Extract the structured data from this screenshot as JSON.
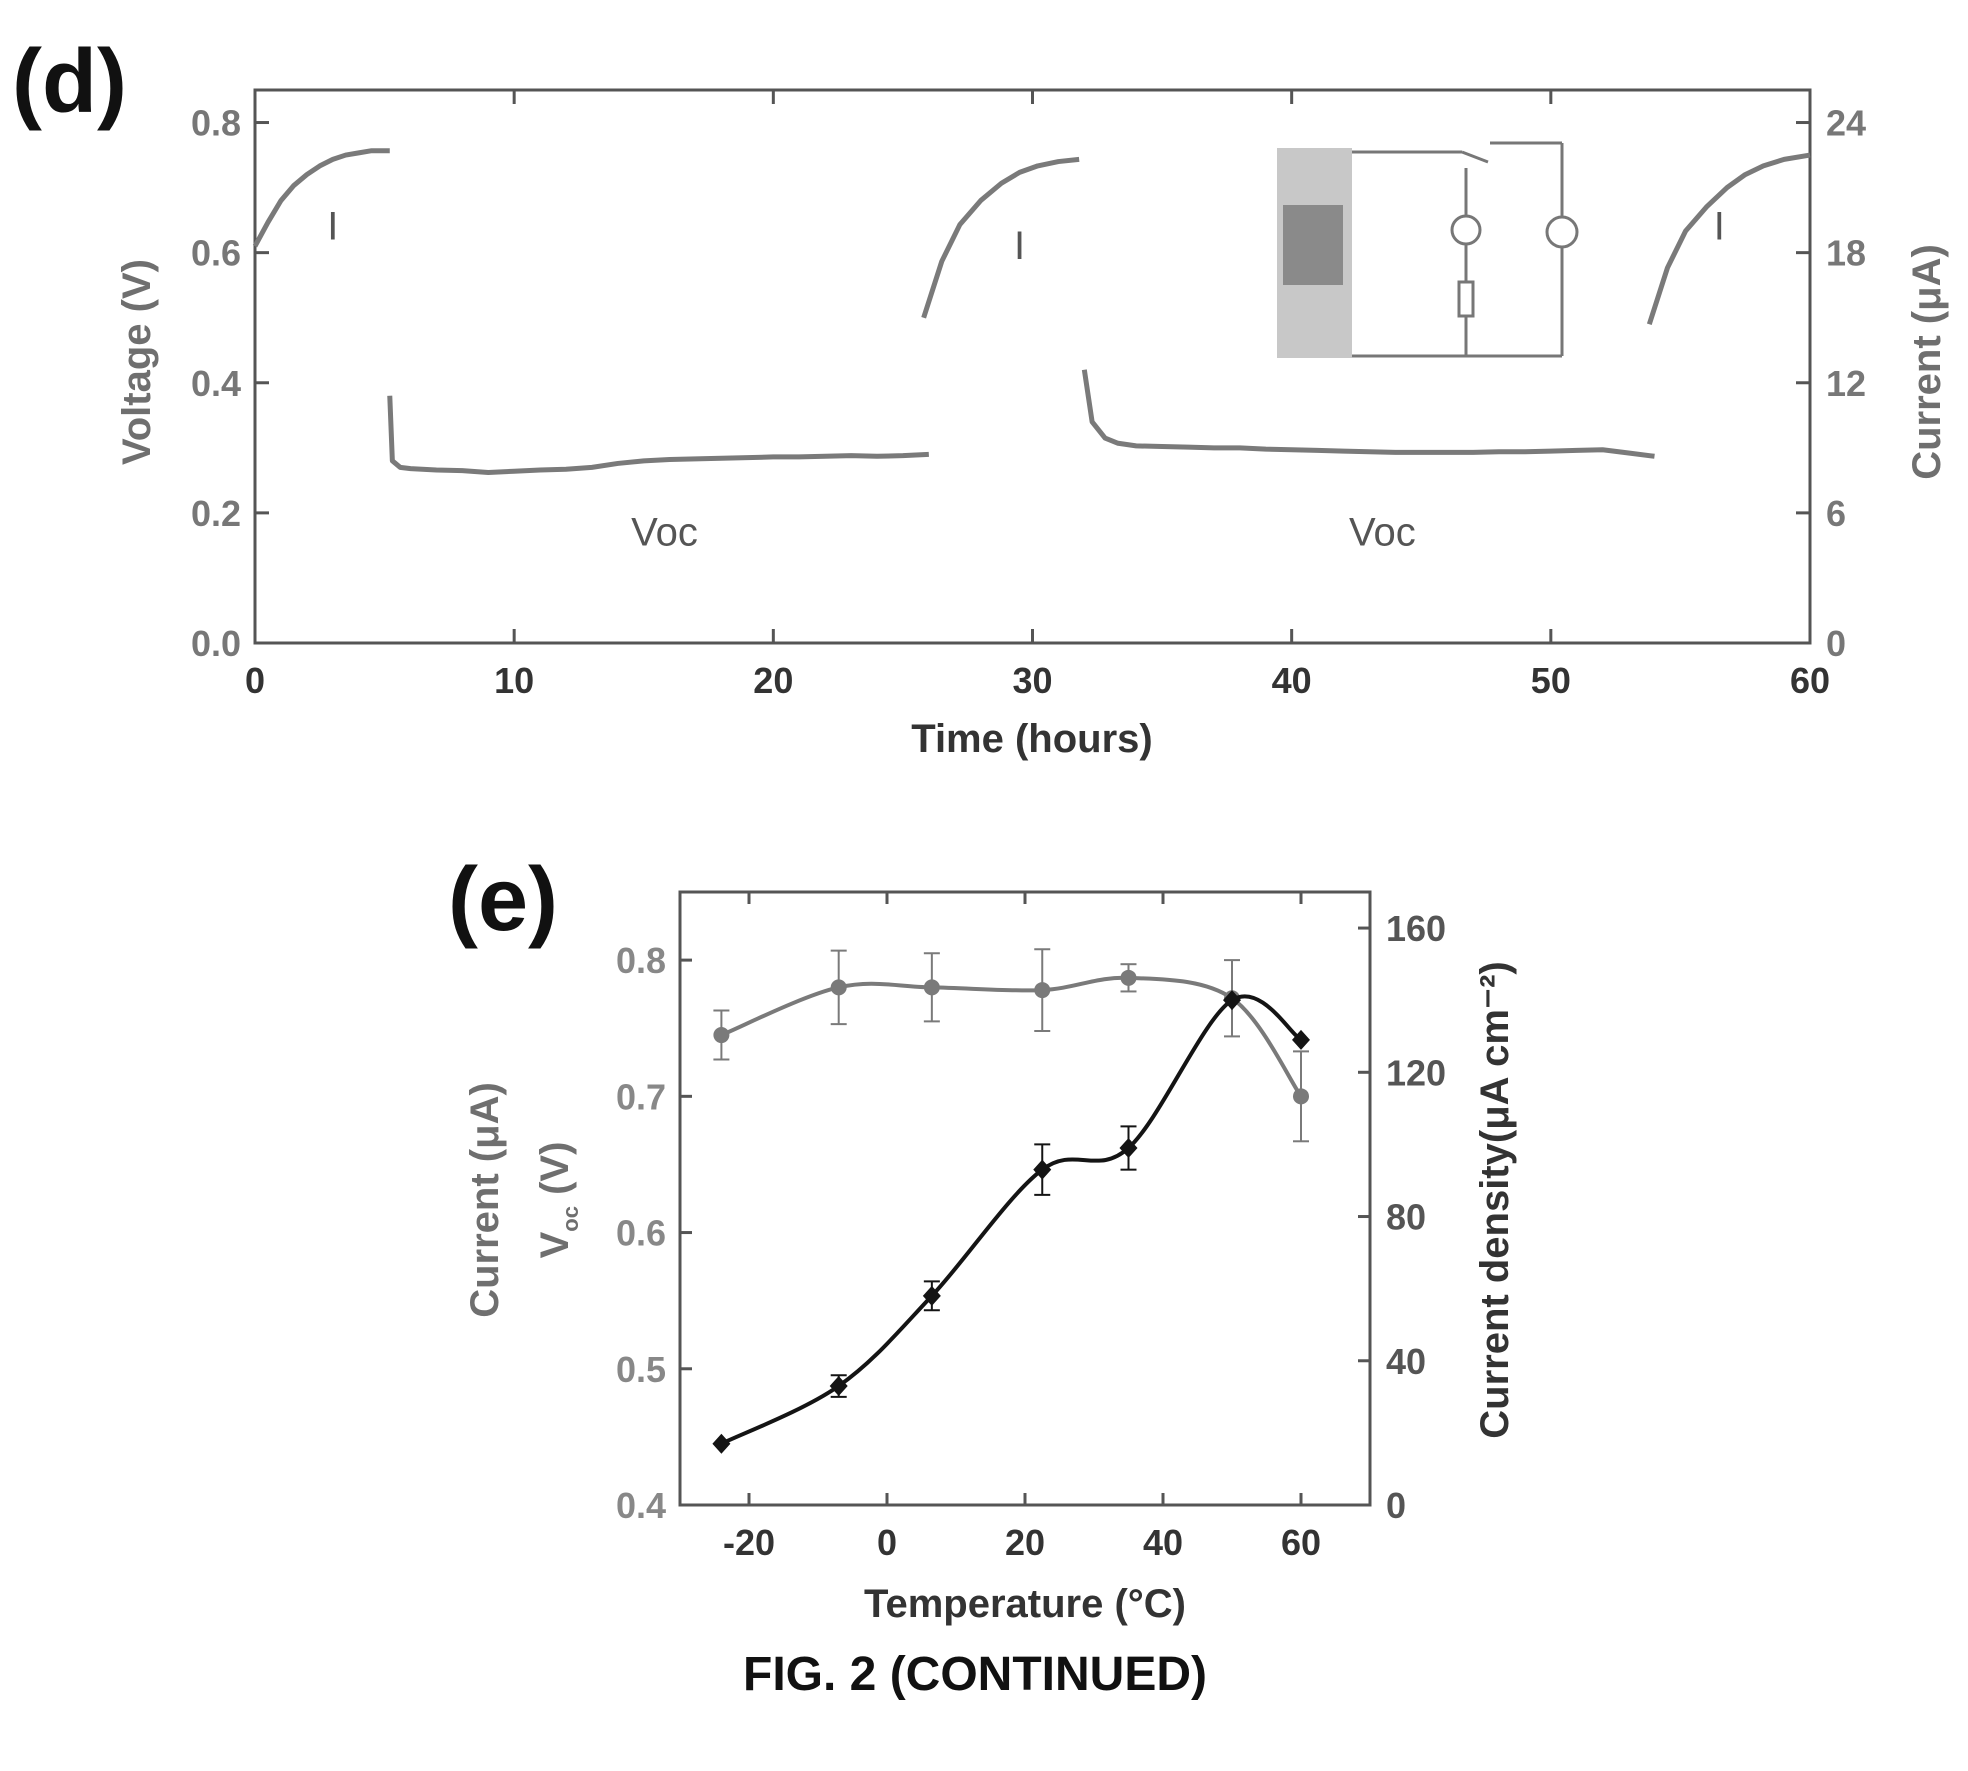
{
  "figure_caption": "FIG. 2 (CONTINUED)",
  "colors": {
    "gray_series": "#7a7a7a",
    "black_series": "#141414",
    "frame": "#555555"
  },
  "chart_data": [
    {
      "panel_label": "(d)",
      "type": "line",
      "title": "",
      "xlabel": "Time (hours)",
      "ylabel": "Voltage (V)",
      "ylabel_right": "Current (μA)",
      "xlim": [
        0,
        60
      ],
      "ylim": [
        0.0,
        0.85
      ],
      "ylim_right": [
        0,
        25.5
      ],
      "x_ticks": [
        "0",
        "10",
        "20",
        "30",
        "40",
        "50",
        "60"
      ],
      "y_ticks": [
        "0.0",
        "0.2",
        "0.4",
        "0.6",
        "0.8"
      ],
      "y_ticks_right": [
        "0",
        "6",
        "12",
        "18",
        "24"
      ],
      "annotations": [
        {
          "text": "I",
          "x": 3.0,
          "y": 0.62
        },
        {
          "text": "I",
          "x": 29.5,
          "y": 0.59
        },
        {
          "text": "I",
          "x": 56.5,
          "y": 0.62
        },
        {
          "text": "Voc",
          "x": 15.8,
          "y": 0.15
        },
        {
          "text": "Voc",
          "x": 43.5,
          "y": 0.15
        }
      ],
      "inset": "circuit schematic with photo of device",
      "series": [
        {
          "name": "I",
          "axis": "right",
          "segments": [
            {
              "x": [
                0,
                0.5,
                1,
                1.5,
                2,
                2.5,
                3,
                3.5,
                4,
                4.5,
                5.2
              ],
              "y": [
                18.3,
                19.4,
                20.4,
                21.1,
                21.6,
                22.0,
                22.3,
                22.5,
                22.6,
                22.7,
                22.7
              ]
            },
            {
              "x": [
                25.8,
                26.5,
                27.2,
                28,
                28.8,
                29.5,
                30.2,
                31,
                31.8
              ],
              "y": [
                15.0,
                17.6,
                19.3,
                20.4,
                21.2,
                21.7,
                22.0,
                22.2,
                22.3
              ]
            },
            {
              "x": [
                53.8,
                54.5,
                55.2,
                56,
                56.8,
                57.5,
                58.2,
                59,
                60
              ],
              "y": [
                14.7,
                17.3,
                19.0,
                20.1,
                21.0,
                21.6,
                22.0,
                22.3,
                22.5
              ]
            }
          ]
        },
        {
          "name": "Voc",
          "axis": "left",
          "segments": [
            {
              "x": [
                5.2,
                5.3,
                5.6,
                6,
                7,
                8,
                9,
                10,
                11,
                12,
                13,
                14,
                15,
                16,
                17,
                18,
                19,
                20,
                21,
                22,
                23,
                24,
                25,
                26
              ],
              "y": [
                0.38,
                0.28,
                0.27,
                0.268,
                0.266,
                0.265,
                0.262,
                0.264,
                0.266,
                0.267,
                0.27,
                0.276,
                0.28,
                0.282,
                0.283,
                0.284,
                0.285,
                0.286,
                0.286,
                0.287,
                0.288,
                0.287,
                0.288,
                0.29
              ]
            },
            {
              "x": [
                32.0,
                32.3,
                32.8,
                33.3,
                34,
                35,
                36,
                37,
                38,
                39,
                40,
                41,
                42,
                43,
                44,
                45,
                46,
                47,
                48,
                49,
                50,
                51,
                52,
                53,
                54
              ],
              "y": [
                0.42,
                0.34,
                0.315,
                0.307,
                0.303,
                0.302,
                0.301,
                0.3,
                0.3,
                0.298,
                0.297,
                0.296,
                0.295,
                0.294,
                0.293,
                0.293,
                0.293,
                0.293,
                0.294,
                0.294,
                0.295,
                0.296,
                0.297,
                0.292,
                0.287
              ]
            }
          ]
        }
      ]
    },
    {
      "panel_label": "(e)",
      "type": "line",
      "title": "",
      "xlabel": "Temperature (°C)",
      "ylabel": "Current (μA)",
      "ylabel_sub": "V (V)",
      "ylabel_sub_subscript": "oc",
      "ylabel_right": "Current density(μA cm⁻²)",
      "xlim": [
        -30,
        70
      ],
      "ylim": [
        0.4,
        0.85
      ],
      "ylim_right": [
        0,
        170
      ],
      "x_ticks": [
        "-20",
        "0",
        "20",
        "40",
        "60"
      ],
      "y_ticks": [
        "0.4",
        "0.5",
        "0.6",
        "0.7",
        "0.8"
      ],
      "y_ticks_right": [
        "0",
        "40",
        "80",
        "120",
        "160"
      ],
      "series": [
        {
          "name": "Voc",
          "axis": "left",
          "marker": "circle",
          "x": [
            -24,
            -7,
            6.5,
            22.5,
            35,
            50,
            60
          ],
          "y": [
            0.745,
            0.78,
            0.78,
            0.778,
            0.787,
            0.772,
            0.7
          ],
          "err": [
            0.018,
            0.027,
            0.025,
            0.03,
            0.01,
            0.028,
            0.033
          ]
        },
        {
          "name": "Current density",
          "axis": "right",
          "marker": "diamond",
          "x": [
            -24,
            -7,
            6.5,
            22.5,
            35,
            50,
            60
          ],
          "y": [
            17,
            33,
            58,
            93,
            99,
            140,
            129
          ],
          "err": [
            0,
            3,
            4,
            7,
            6,
            0,
            0
          ]
        }
      ]
    }
  ]
}
